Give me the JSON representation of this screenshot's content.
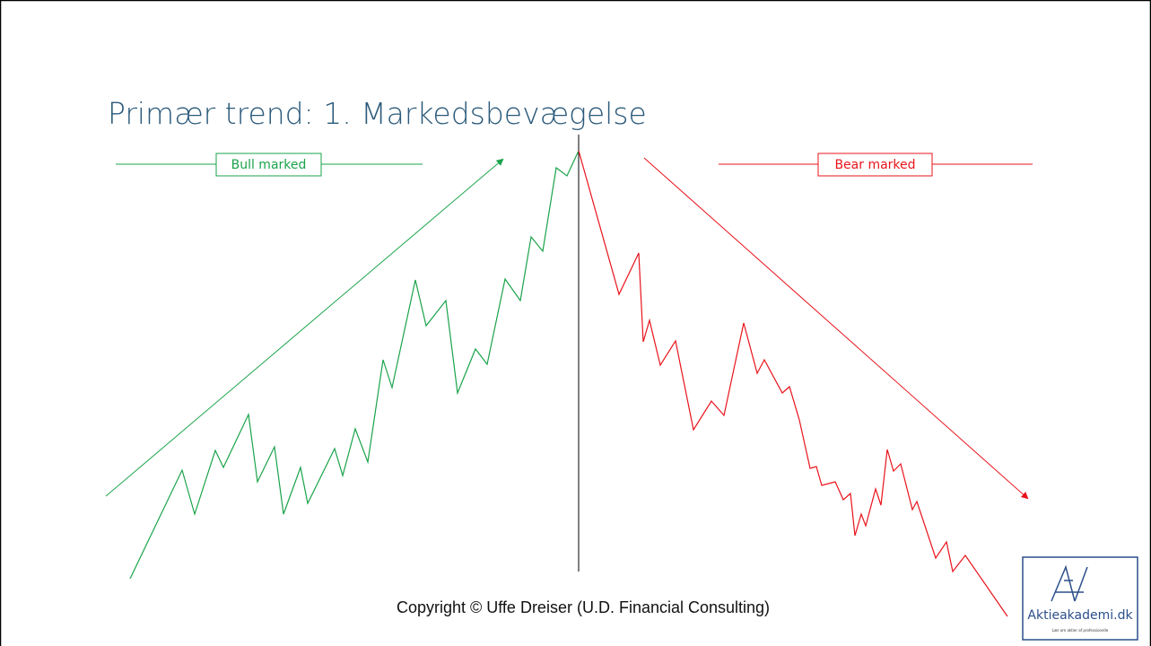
{
  "title": "Primær trend: 1. Markedsbevægelse",
  "bull_label": "Bull marked",
  "bear_label": "Bear marked",
  "copyright": "Copyright © Uffe Dreiser (U.D. Financial Consulting)",
  "logo": {
    "name": "Aktieakademi.dk",
    "tagline": "Lær om aktier af professionelle"
  }
}
